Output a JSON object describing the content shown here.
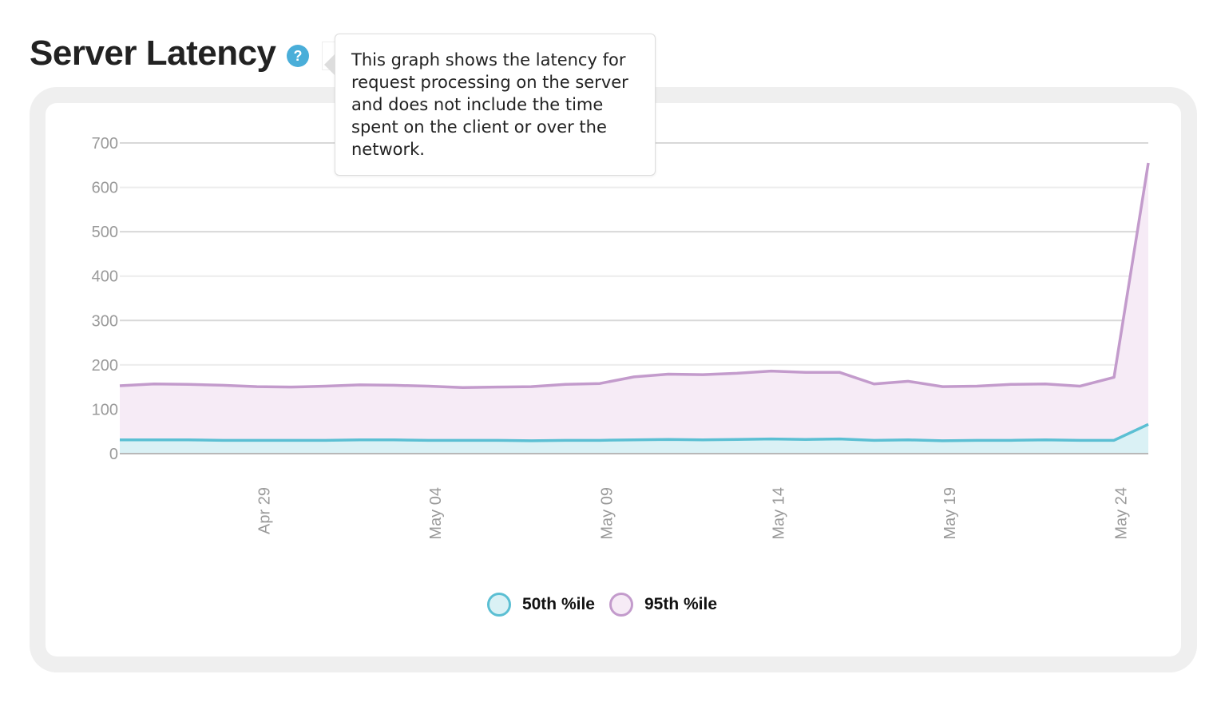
{
  "header": {
    "title": "Server Latency",
    "help_icon": "?"
  },
  "tooltip": {
    "text": "This graph shows the latency for request processing on the server and does not include the time spent on the client or over the network."
  },
  "chart_data": {
    "type": "area",
    "title": "Server Latency",
    "xlabel": "",
    "ylabel": "",
    "ylim": [
      0,
      700
    ],
    "y_ticks": [
      0,
      100,
      200,
      300,
      400,
      500,
      600,
      700
    ],
    "x": [
      0,
      1,
      2,
      3,
      4,
      5,
      6,
      7,
      8,
      9,
      10,
      11,
      12,
      13,
      14,
      15,
      16,
      17,
      18,
      19,
      20,
      21,
      22,
      23,
      24,
      25,
      26,
      27,
      28,
      29,
      30
    ],
    "x_ticks": [
      {
        "label": "Apr 29",
        "x": 4.2
      },
      {
        "label": "May 04",
        "x": 9.2
      },
      {
        "label": "May 09",
        "x": 14.2
      },
      {
        "label": "May 14",
        "x": 19.2
      },
      {
        "label": "May 19",
        "x": 24.2
      },
      {
        "label": "May 24",
        "x": 29.2
      }
    ],
    "grid": true,
    "legend": "bottom-center",
    "series": [
      {
        "name": "95th %ile",
        "color": "#c39bcc",
        "fill": "#f6ebf6",
        "values": [
          153,
          157,
          156,
          154,
          151,
          150,
          152,
          155,
          154,
          152,
          149,
          150,
          151,
          156,
          158,
          173,
          179,
          178,
          181,
          186,
          183,
          183,
          157,
          163,
          151,
          152,
          156,
          157,
          152,
          172,
          655
        ]
      },
      {
        "name": "50th %ile",
        "color": "#5bbfd3",
        "fill": "#daf1f5",
        "values": [
          31,
          31,
          31,
          30,
          30,
          30,
          30,
          31,
          31,
          30,
          30,
          30,
          29,
          30,
          30,
          31,
          32,
          31,
          32,
          33,
          32,
          33,
          30,
          31,
          29,
          30,
          30,
          31,
          30,
          30,
          66
        ]
      }
    ]
  }
}
